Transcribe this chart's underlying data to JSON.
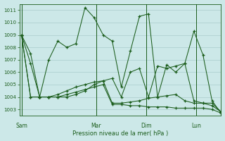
{
  "title": "Pression niveau de la mer( hPa )",
  "bg_color": "#cce8e8",
  "grid_color": "#aacccc",
  "line_color": "#1a5c1a",
  "ylim": [
    1002.5,
    1011.5
  ],
  "yticks": [
    1003,
    1004,
    1005,
    1006,
    1007,
    1008,
    1009,
    1010,
    1011
  ],
  "x_labels": [
    "Sam",
    "Mar",
    "Dim",
    "Lun"
  ],
  "vlines": [
    0.0,
    0.375,
    0.625,
    0.875
  ],
  "series1": [
    1009,
    1007.5,
    1004,
    1007,
    1008.5,
    1008,
    1008.3,
    1011.2,
    1010.4,
    1009,
    1008.5,
    1004.8,
    1007.7,
    1010.5,
    1010.7,
    1004,
    1006.6,
    1006,
    1006.7,
    1009.3,
    1007.4,
    1003.7,
    1002.7
  ],
  "series2": [
    1009,
    1006.7,
    1004,
    1004,
    1004,
    1004,
    1004.2,
    1004.5,
    1005.0,
    1005.3,
    1005.5,
    1004.0,
    1006.0,
    1006.3,
    1004.0,
    1006.5,
    1006.3,
    1006.5,
    1006.7,
    1003.7,
    1003.5,
    1003.5,
    1002.8
  ],
  "series3": [
    1009,
    1004,
    1004,
    1004,
    1004.2,
    1004.5,
    1004.8,
    1005.0,
    1005.2,
    1005.3,
    1003.5,
    1003.5,
    1003.6,
    1003.7,
    1003.9,
    1004.0,
    1004.1,
    1004.2,
    1003.7,
    1003.5,
    1003.5,
    1003.3,
    1002.8
  ],
  "series4": [
    1009,
    1004,
    1004,
    1004,
    1004,
    1004.2,
    1004.4,
    1004.6,
    1004.8,
    1005.0,
    1003.4,
    1003.4,
    1003.3,
    1003.3,
    1003.2,
    1003.2,
    1003.2,
    1003.1,
    1003.1,
    1003.1,
    1003.1,
    1003.0,
    1002.7
  ],
  "n_points": 23
}
